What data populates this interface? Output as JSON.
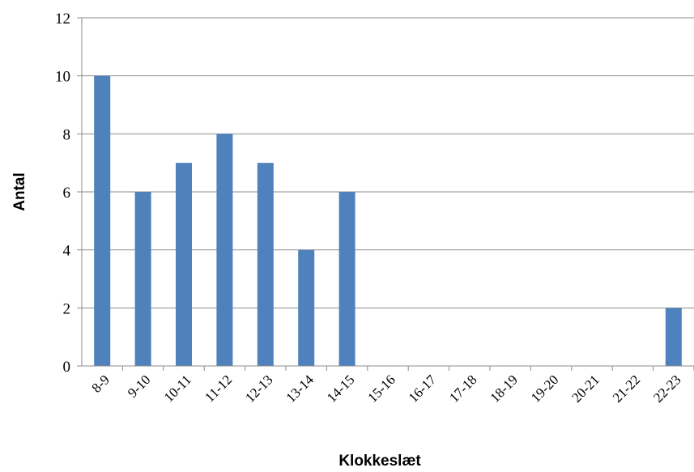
{
  "chart_data": {
    "type": "bar",
    "categories": [
      "8-9",
      "9-10",
      "10-11",
      "11-12",
      "12-13",
      "13-14",
      "14-15",
      "15-16",
      "16-17",
      "17-18",
      "18-19",
      "19-20",
      "20-21",
      "21-22",
      "22-23"
    ],
    "values": [
      10,
      6,
      7,
      8,
      7,
      4,
      6,
      0,
      0,
      0,
      0,
      0,
      0,
      0,
      2
    ],
    "title": "",
    "xlabel": "Klokkeslæt",
    "ylabel": "Antal",
    "ylim": [
      0,
      12
    ],
    "yticks": [
      0,
      2,
      4,
      6,
      8,
      10,
      12
    ],
    "grid": true,
    "bar_color": "#4f81bd",
    "legend": "none"
  }
}
